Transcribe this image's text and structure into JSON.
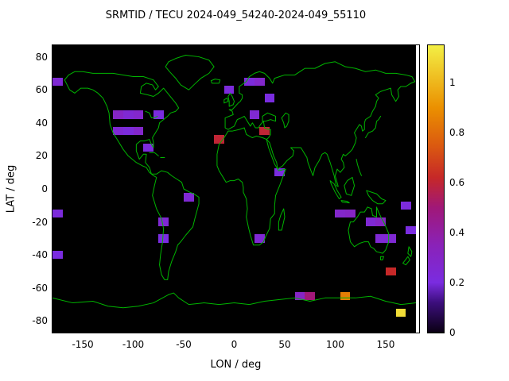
{
  "title": "SRMTID / TECU 2024-049_54240-2024-049_55110",
  "chart_data": {
    "type": "heatmap",
    "title": "SRMTID / TECU 2024-049_54240-2024-049_55110",
    "xlabel": "LON / deg",
    "ylabel": "LAT / deg",
    "xlim": [
      -180,
      180
    ],
    "ylim": [
      -87,
      87
    ],
    "grid": false,
    "x_ticks": [
      {
        "v": -150,
        "label": "-150"
      },
      {
        "v": -100,
        "label": "-100"
      },
      {
        "v": -50,
        "label": "-50"
      },
      {
        "v": 0,
        "label": "0"
      },
      {
        "v": 50,
        "label": "50"
      },
      {
        "v": 100,
        "label": "100"
      },
      {
        "v": 150,
        "label": "150"
      }
    ],
    "y_ticks": [
      {
        "v": 80,
        "label": "80"
      },
      {
        "v": 60,
        "label": "60"
      },
      {
        "v": 40,
        "label": "40"
      },
      {
        "v": 20,
        "label": "20"
      },
      {
        "v": 0,
        "label": "0"
      },
      {
        "v": -20,
        "label": "-20"
      },
      {
        "v": -40,
        "label": "-40"
      },
      {
        "v": -60,
        "label": "-60"
      },
      {
        "v": -80,
        "label": "-80"
      }
    ],
    "colorbar": {
      "min": 0,
      "max": 1.15,
      "ticks": [
        {
          "v": 0,
          "label": "0"
        },
        {
          "v": 0.2,
          "label": "0.2"
        },
        {
          "v": 0.4,
          "label": "0.4"
        },
        {
          "v": 0.6,
          "label": "0.6"
        },
        {
          "v": 0.8,
          "label": "0.8"
        },
        {
          "v": 1,
          "label": "1"
        }
      ],
      "position": "right"
    },
    "colors": {
      "map_background": "#000000",
      "coastline": "#00b400",
      "page_background": "#ffffff",
      "text": "#000000"
    },
    "palette": [
      [
        0.0,
        "#0a0013"
      ],
      [
        0.12,
        "#3c0e7c"
      ],
      [
        0.2,
        "#7a2ce0"
      ],
      [
        0.35,
        "#8a22b8"
      ],
      [
        0.5,
        "#a01878"
      ],
      [
        0.62,
        "#c62828"
      ],
      [
        0.75,
        "#db5a10"
      ],
      [
        0.9,
        "#eb9000"
      ],
      [
        1.15,
        "#f3ef45"
      ]
    ],
    "cell_size_deg": {
      "lon": 10,
      "lat": 5
    },
    "cells": [
      {
        "lon": -175,
        "lat": 65,
        "value": 0.25
      },
      {
        "lon": 15,
        "lat": 65,
        "value": 0.22
      },
      {
        "lon": 25,
        "lat": 65,
        "value": 0.28
      },
      {
        "lon": -5,
        "lat": 60,
        "value": 0.22
      },
      {
        "lon": 35,
        "lat": 55,
        "value": 0.2
      },
      {
        "lon": -115,
        "lat": 45,
        "value": 0.3
      },
      {
        "lon": -105,
        "lat": 45,
        "value": 0.25
      },
      {
        "lon": -95,
        "lat": 45,
        "value": 0.28
      },
      {
        "lon": -75,
        "lat": 45,
        "value": 0.2
      },
      {
        "lon": 20,
        "lat": 45,
        "value": 0.25
      },
      {
        "lon": -115,
        "lat": 35,
        "value": 0.25
      },
      {
        "lon": -105,
        "lat": 35,
        "value": 0.22
      },
      {
        "lon": -95,
        "lat": 35,
        "value": 0.28
      },
      {
        "lon": 30,
        "lat": 35,
        "value": 0.6
      },
      {
        "lon": -15,
        "lat": 30,
        "value": 0.6
      },
      {
        "lon": -85,
        "lat": 25,
        "value": 0.22
      },
      {
        "lon": 45,
        "lat": 10,
        "value": 0.2
      },
      {
        "lon": -45,
        "lat": -5,
        "value": 0.25
      },
      {
        "lon": 170,
        "lat": -10,
        "value": 0.22
      },
      {
        "lon": -175,
        "lat": -15,
        "value": 0.22
      },
      {
        "lon": 105,
        "lat": -15,
        "value": 0.28
      },
      {
        "lon": 115,
        "lat": -15,
        "value": 0.3
      },
      {
        "lon": -70,
        "lat": -20,
        "value": 0.25
      },
      {
        "lon": 135,
        "lat": -20,
        "value": 0.25
      },
      {
        "lon": 145,
        "lat": -20,
        "value": 0.3
      },
      {
        "lon": 175,
        "lat": -25,
        "value": 0.2
      },
      {
        "lon": -70,
        "lat": -30,
        "value": 0.2
      },
      {
        "lon": 25,
        "lat": -30,
        "value": 0.25
      },
      {
        "lon": 145,
        "lat": -30,
        "value": 0.25
      },
      {
        "lon": 155,
        "lat": -30,
        "value": 0.25
      },
      {
        "lon": -175,
        "lat": -40,
        "value": 0.2
      },
      {
        "lon": 155,
        "lat": -50,
        "value": 0.62
      },
      {
        "lon": 65,
        "lat": -65,
        "value": 0.3
      },
      {
        "lon": 75,
        "lat": -65,
        "value": 0.5
      },
      {
        "lon": 110,
        "lat": -65,
        "value": 0.85
      },
      {
        "lon": 165,
        "lat": -75,
        "value": 1.1
      }
    ]
  }
}
